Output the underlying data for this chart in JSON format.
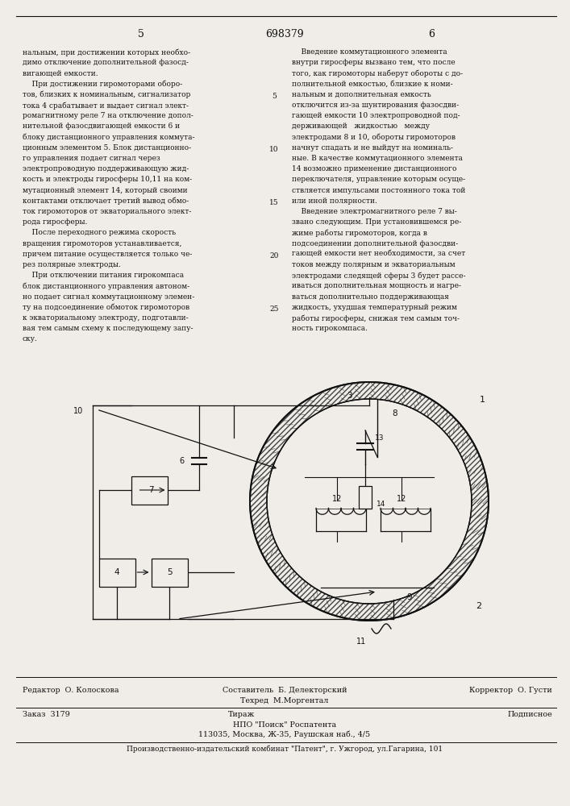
{
  "page_numbers": [
    "5",
    "698379",
    "6"
  ],
  "left_column_text": [
    "нальным, при достижении которых необхо-",
    "димо отключение дополнительной фазосд-",
    "вигающей емкости.",
    "    При достижении гиромоторами оборо-",
    "тов, близких к номинальным, сигнализатор",
    "тока 4 срабатывает и выдает сигнал элект-",
    "ромагнитному реле 7 на отключение допол-",
    "нительной фазосдвигающей емкости 6 и",
    "блоку дистанционного управления коммута-",
    "ционным элементом 5. Блок дистанционно-",
    "го управления подает сигнал через",
    "электропроводную поддерживающую жид-",
    "кость и электроды гиросферы 10,11 на ком-",
    "мутационный элемент 14, который своими",
    "контактами отключает третий вывод обмо-",
    "ток гиромоторов от экваториального элект-",
    "рода гиросферы.",
    "    После переходного режима скорость",
    "вращения гиромоторов устанавливается,",
    "причем питание осуществляется только че-",
    "рез полярные электроды.",
    "    При отключении питания гирокомпаса",
    "блок дистанционного управления автоном-",
    "но подает сигнал коммутационному элемен-",
    "ту на подсоединение обмоток гиромоторов",
    "к экваториальному электроду, подготавли-",
    "вая тем самым схему к последующему запу-",
    "ску."
  ],
  "right_column_text": [
    "    Введение коммутационного элемента",
    "внутри гиросферы вызвано тем, что после",
    "того, как гиромоторы наберут обороты с до-",
    "полнительной емкостью, близкие к номи-",
    "нальным и дополнительная емкость",
    "отключится из-за шунтирования фазосдви-",
    "гающей емкости 10 электропроводной под-",
    "держивающей   жидкостью   между",
    "электродами 8 и 10, обороты гиромоторов",
    "начнут спадать и не выйдут на номиналь-",
    "ные. В качестве коммутационного элемента",
    "14 возможно применение дистанционного",
    "переключателя, управление которым осуще-",
    "ствляется импульсами постоянного тока той",
    "или иной полярности.",
    "    Введение электромагнитного реле 7 вы-",
    "звано следующим. При установившемся ре-",
    "жиме работы гиромоторов, когда в",
    "подсоединении дополнительной фазосдви-",
    "гающей емкости нет необходимости, за счет",
    "токов между полярным и экваториальным",
    "электродами следящей сферы 3 будет рассе-",
    "иваться дополнительная мощность и нагре-",
    "ваться дополнительно поддерживающая",
    "жидкость, ухудшая температурный режим",
    "работы гиросферы, снижая тем самым точ-",
    "ность гирокомпаса."
  ],
  "line_nums": [
    "5",
    "10",
    "15",
    "20",
    "25"
  ],
  "line_num_rows": [
    4,
    9,
    14,
    19,
    24
  ],
  "footer_editor": "Редактор  О. Колоскова",
  "footer_composer": "Составитель  Б. Делекторский",
  "footer_techred": "Техред  М.Моргентал",
  "footer_corrector": "Корректор  О. Густи",
  "footer_order": "Заказ  3179",
  "footer_tirazh": "Тираж",
  "footer_podpisnoe": "Подписное",
  "footer_npo": "НПО \"Поиск\" Роспатента",
  "footer_address": "113035, Москва, Ж-35, Раушская наб., 4/5",
  "footer_plant": "Производственно-издательский комбинат \"Патент\", г. Ужгород, ул.Гагарина, 101",
  "bg_color": "#f0ede8",
  "text_color": "#111111",
  "line_color": "#111111"
}
